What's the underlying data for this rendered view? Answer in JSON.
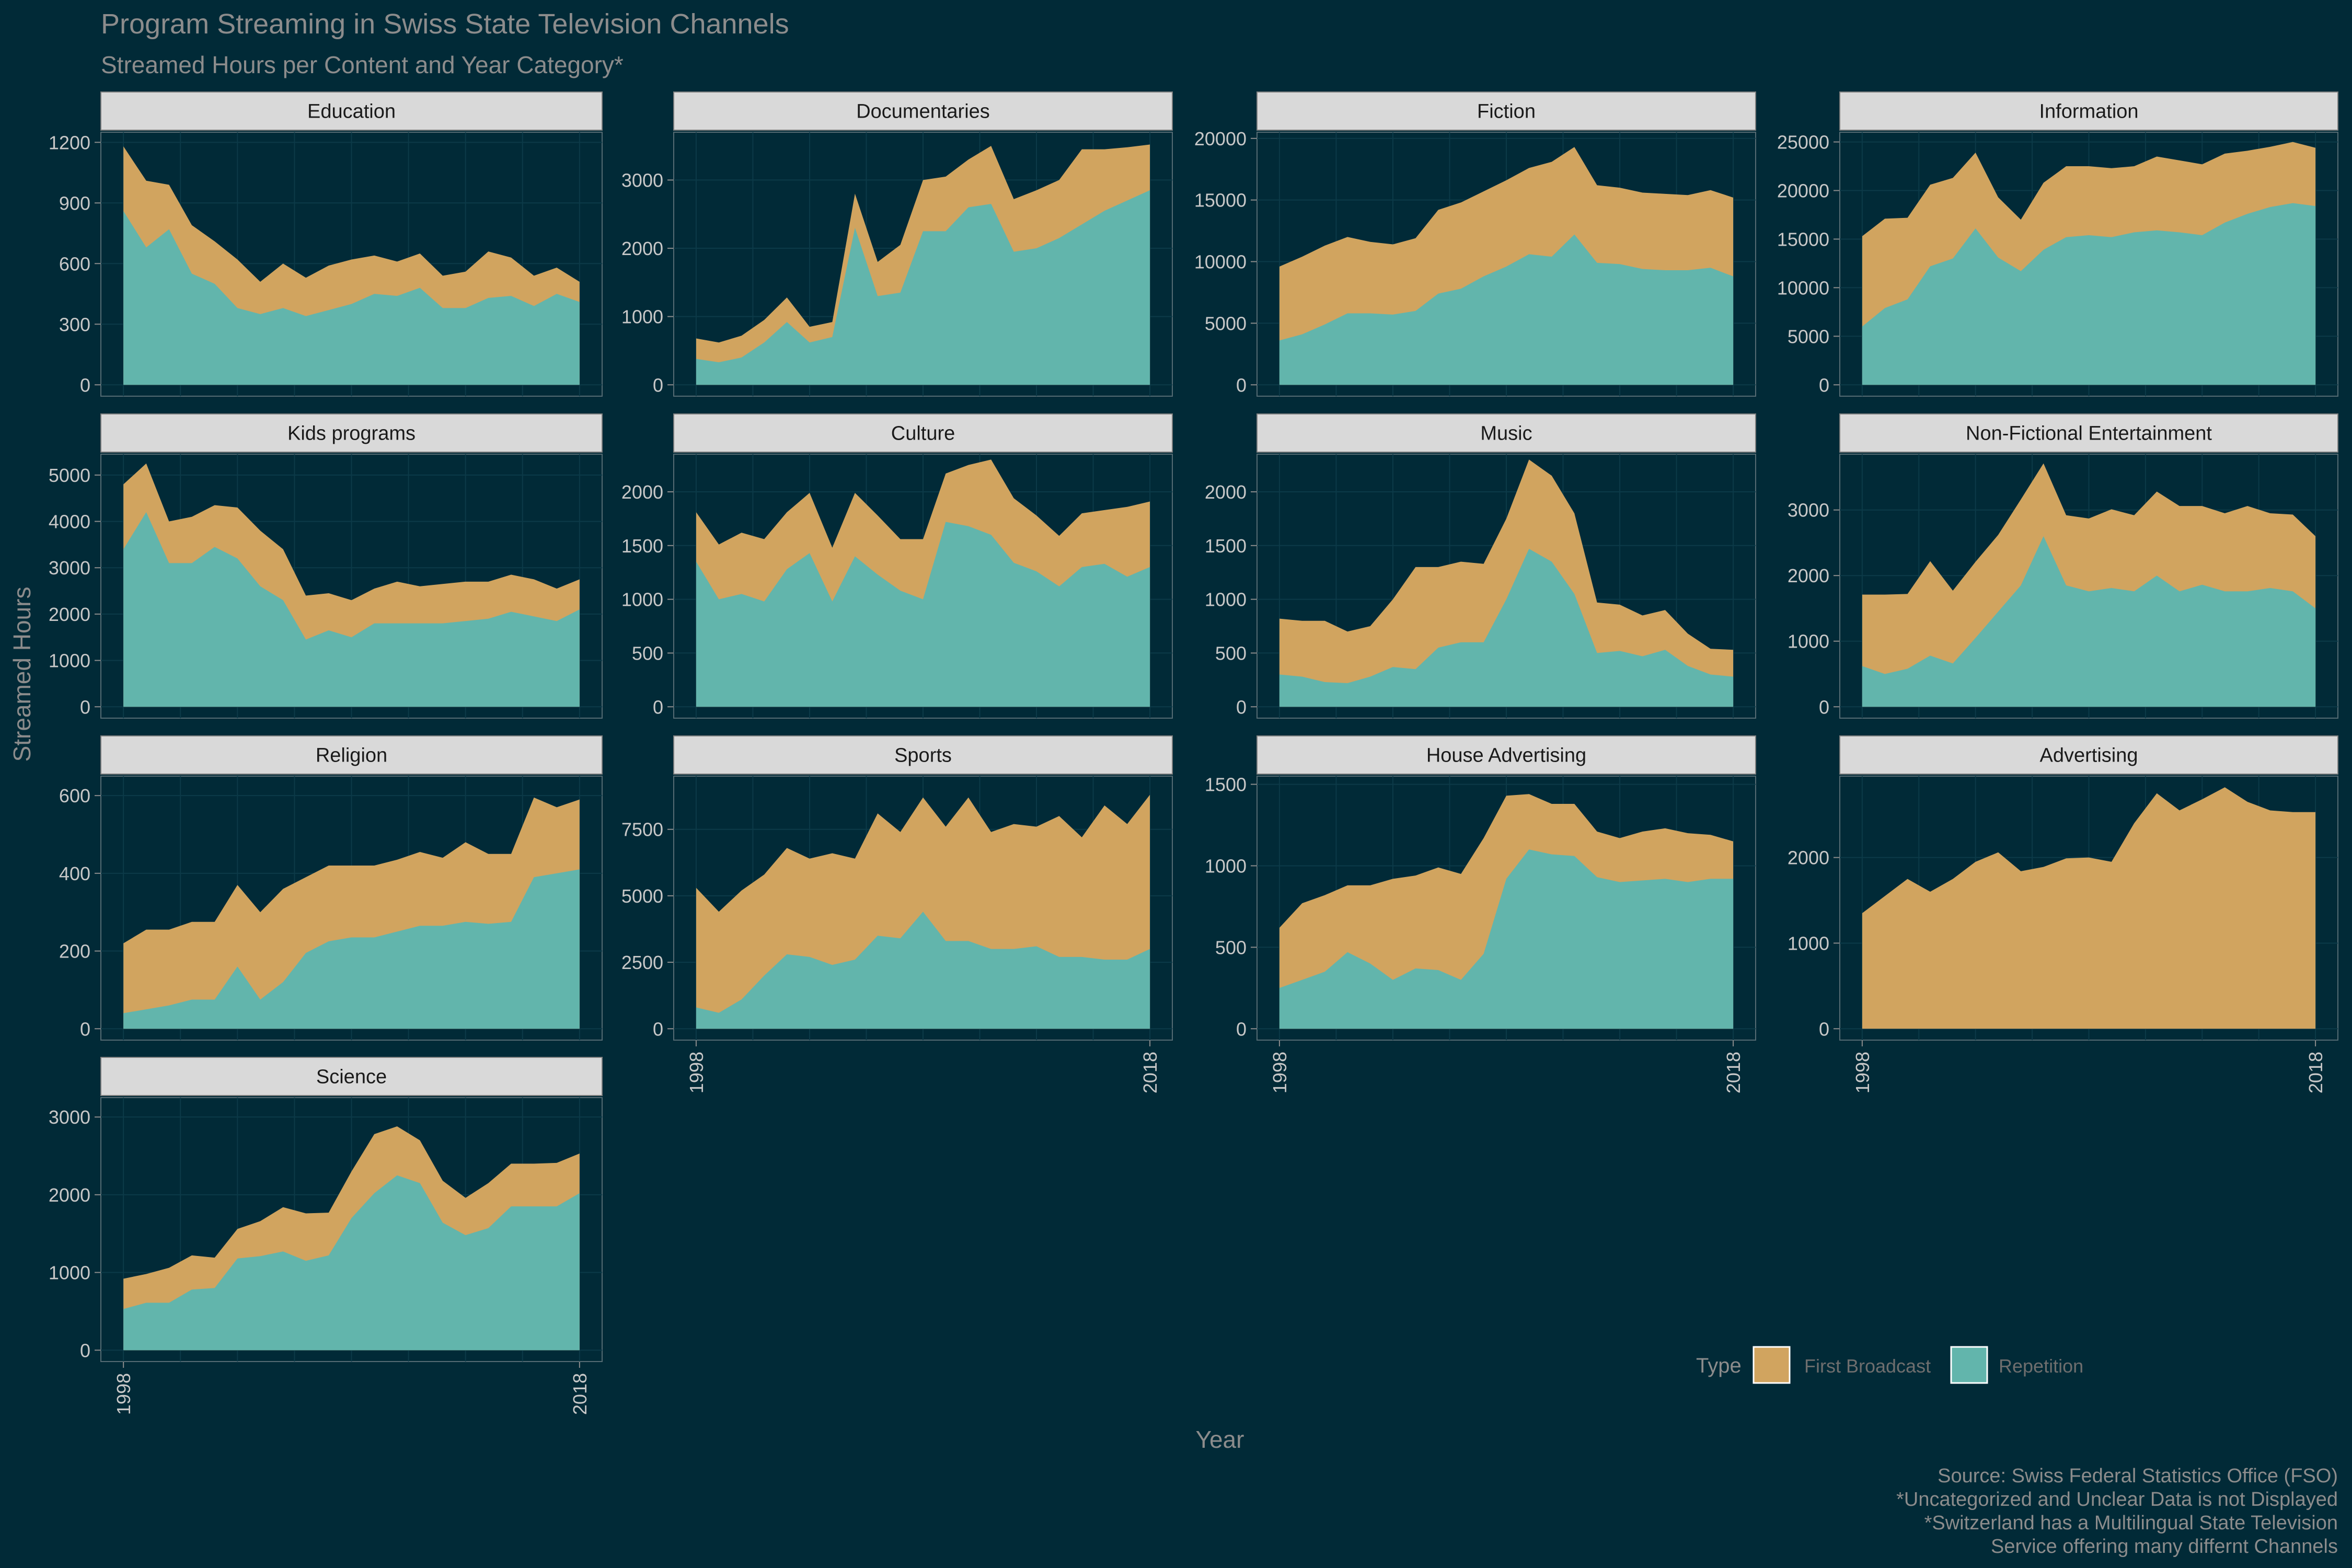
{
  "title": "Program Streaming in Swiss State Television Channels",
  "subtitle": "Streamed Hours per Content and Year Category*",
  "ylabel": "Streamed Hours",
  "xlabel": "Year",
  "legend": {
    "title": "Type",
    "items": [
      {
        "label": "First Broadcast",
        "color": "#d1a45f"
      },
      {
        "label": "Repetition",
        "color": "#62b5ac"
      }
    ]
  },
  "caption": [
    "Source: Swiss Federal Statistics Office (FSO)",
    "*Uncategorized and Unclear Data is not Displayed",
    "*Switzerland has a Multilingual State Television",
    "Service offering many differnt Channels"
  ],
  "colors": {
    "background": "#012a37",
    "first_broadcast": "#d1a45f",
    "repetition": "#62b5ac",
    "strip": "#d9d9d9",
    "text": "#8c8c8c"
  },
  "chart_data": {
    "type": "area",
    "stacked": true,
    "x": [
      1998,
      1999,
      2000,
      2001,
      2002,
      2003,
      2004,
      2005,
      2006,
      2007,
      2008,
      2009,
      2010,
      2011,
      2012,
      2013,
      2014,
      2015,
      2016,
      2017,
      2018
    ],
    "x_ticks": [
      "1998",
      "2018"
    ],
    "panels": [
      {
        "name": "Education",
        "yticks": [
          0,
          300,
          600,
          900,
          1200
        ],
        "ylim": [
          0,
          1250
        ],
        "repetition": [
          860,
          680,
          770,
          550,
          500,
          380,
          350,
          380,
          340,
          370,
          400,
          450,
          440,
          480,
          380,
          380,
          430,
          440,
          390,
          450,
          410
        ],
        "total": [
          1180,
          1010,
          990,
          790,
          710,
          620,
          510,
          600,
          530,
          590,
          620,
          640,
          610,
          650,
          540,
          560,
          660,
          630,
          540,
          580,
          510
        ]
      },
      {
        "name": "Documentaries",
        "yticks": [
          0,
          1000,
          2000,
          3000
        ],
        "ylim": [
          0,
          3700
        ],
        "repetition": [
          380,
          330,
          400,
          620,
          920,
          620,
          700,
          2300,
          1300,
          1350,
          2250,
          2250,
          2600,
          2650,
          1950,
          2000,
          2150,
          2350,
          2550,
          2700,
          2850
        ],
        "total": [
          680,
          620,
          720,
          950,
          1280,
          850,
          920,
          2800,
          1800,
          2050,
          3000,
          3050,
          3300,
          3500,
          2720,
          2850,
          3000,
          3450,
          3450,
          3480,
          3520
        ]
      },
      {
        "name": "Fiction",
        "yticks": [
          0,
          5000,
          10000,
          15000,
          20000
        ],
        "ylim": [
          0,
          20500
        ],
        "repetition": [
          3600,
          4100,
          4900,
          5800,
          5800,
          5700,
          6000,
          7400,
          7800,
          8800,
          9600,
          10600,
          10400,
          12200,
          9900,
          9800,
          9400,
          9300,
          9300,
          9500,
          8800
        ],
        "total": [
          9600,
          10400,
          11300,
          12000,
          11600,
          11400,
          11900,
          14200,
          14800,
          15700,
          16600,
          17600,
          18100,
          19300,
          16200,
          16000,
          15600,
          15500,
          15400,
          15800,
          15200
        ]
      },
      {
        "name": "Information",
        "yticks": [
          0,
          5000,
          10000,
          15000,
          20000,
          25000
        ],
        "ylim": [
          0,
          26000
        ],
        "repetition": [
          6000,
          7900,
          8800,
          12200,
          13000,
          16100,
          13100,
          11700,
          13900,
          15200,
          15400,
          15200,
          15700,
          15900,
          15700,
          15400,
          16700,
          17600,
          18300,
          18700,
          18400
        ],
        "total": [
          15300,
          17100,
          17200,
          20600,
          21300,
          23900,
          19300,
          17000,
          20800,
          22500,
          22500,
          22300,
          22500,
          23500,
          23100,
          22700,
          23800,
          24100,
          24500,
          25000,
          24400
        ]
      },
      {
        "name": "Kids programs",
        "yticks": [
          0,
          1000,
          2000,
          3000,
          4000,
          5000
        ],
        "ylim": [
          0,
          5450
        ],
        "repetition": [
          3400,
          4200,
          3100,
          3100,
          3450,
          3200,
          2600,
          2300,
          1450,
          1650,
          1500,
          1800,
          1800,
          1800,
          1800,
          1850,
          1900,
          2050,
          1950,
          1850,
          2100
        ],
        "total": [
          4800,
          5250,
          4000,
          4100,
          4350,
          4300,
          3800,
          3400,
          2400,
          2450,
          2300,
          2550,
          2700,
          2600,
          2650,
          2700,
          2700,
          2850,
          2750,
          2550,
          2750
        ]
      },
      {
        "name": "Culture",
        "yticks": [
          0,
          500,
          1000,
          1500,
          2000
        ],
        "ylim": [
          0,
          2350
        ],
        "repetition": [
          1350,
          1000,
          1050,
          980,
          1280,
          1430,
          980,
          1400,
          1230,
          1080,
          1000,
          1720,
          1680,
          1600,
          1340,
          1260,
          1120,
          1300,
          1330,
          1210,
          1300
        ],
        "total": [
          1810,
          1510,
          1620,
          1560,
          1810,
          1990,
          1480,
          1990,
          1780,
          1560,
          1560,
          2170,
          2250,
          2300,
          1940,
          1780,
          1590,
          1800,
          1830,
          1860,
          1910
        ]
      },
      {
        "name": "Music",
        "yticks": [
          0,
          500,
          1000,
          1500,
          2000
        ],
        "ylim": [
          0,
          2350
        ],
        "repetition": [
          300,
          280,
          230,
          220,
          280,
          370,
          350,
          550,
          600,
          600,
          1000,
          1470,
          1350,
          1050,
          500,
          520,
          470,
          530,
          380,
          300,
          280
        ],
        "total": [
          820,
          800,
          800,
          700,
          750,
          1000,
          1300,
          1300,
          1350,
          1330,
          1750,
          2300,
          2150,
          1800,
          970,
          950,
          850,
          900,
          680,
          540,
          530
        ]
      },
      {
        "name": "Non-Fictional Entertainment",
        "yticks": [
          0,
          1000,
          2000,
          3000
        ],
        "ylim": [
          0,
          3850
        ],
        "repetition": [
          620,
          500,
          580,
          780,
          660,
          1050,
          1450,
          1850,
          2600,
          1850,
          1760,
          1810,
          1760,
          2000,
          1760,
          1860,
          1760,
          1760,
          1810,
          1760,
          1500
        ],
        "total": [
          1710,
          1710,
          1720,
          2220,
          1770,
          2210,
          2620,
          3160,
          3710,
          2920,
          2870,
          3010,
          2920,
          3280,
          3060,
          3060,
          2950,
          3060,
          2950,
          2930,
          2600
        ]
      },
      {
        "name": "Religion",
        "yticks": [
          0,
          200,
          400,
          600
        ],
        "ylim": [
          0,
          650
        ],
        "repetition": [
          40,
          50,
          60,
          75,
          75,
          160,
          75,
          120,
          195,
          225,
          235,
          235,
          250,
          265,
          265,
          275,
          270,
          275,
          390,
          400,
          410
        ],
        "total": [
          220,
          255,
          255,
          275,
          275,
          370,
          300,
          360,
          390,
          420,
          420,
          420,
          435,
          455,
          440,
          480,
          450,
          450,
          595,
          570,
          590
        ]
      },
      {
        "name": "Sports",
        "yticks": [
          0,
          2500,
          5000,
          7500
        ],
        "ylim": [
          0,
          9500
        ],
        "repetition": [
          800,
          600,
          1100,
          2000,
          2800,
          2700,
          2400,
          2600,
          3500,
          3400,
          4400,
          3300,
          3300,
          3000,
          3000,
          3100,
          2700,
          2700,
          2600,
          2600,
          3000
        ],
        "total": [
          5300,
          4400,
          5200,
          5800,
          6800,
          6400,
          6600,
          6400,
          8100,
          7400,
          8700,
          7600,
          8700,
          7400,
          7700,
          7600,
          8000,
          7200,
          8400,
          7700,
          8800
        ]
      },
      {
        "name": "House Advertising",
        "yticks": [
          0,
          500,
          1000,
          1500
        ],
        "ylim": [
          0,
          1550
        ],
        "repetition": [
          250,
          300,
          350,
          470,
          400,
          300,
          370,
          360,
          300,
          460,
          920,
          1100,
          1070,
          1060,
          930,
          900,
          910,
          920,
          900,
          920,
          920
        ],
        "total": [
          620,
          770,
          820,
          880,
          880,
          920,
          940,
          990,
          950,
          1170,
          1430,
          1440,
          1380,
          1380,
          1210,
          1170,
          1210,
          1230,
          1200,
          1190,
          1150
        ]
      },
      {
        "name": "Advertising",
        "yticks": [
          0,
          1000,
          2000
        ],
        "ylim": [
          0,
          2950
        ],
        "repetition": [
          0,
          0,
          0,
          0,
          0,
          0,
          0,
          0,
          0,
          0,
          0,
          0,
          0,
          0,
          0,
          0,
          0,
          0,
          0,
          0,
          0
        ],
        "total": [
          1350,
          1550,
          1750,
          1600,
          1750,
          1950,
          2060,
          1840,
          1890,
          1990,
          2000,
          1950,
          2400,
          2750,
          2550,
          2680,
          2820,
          2650,
          2550,
          2530,
          2530
        ]
      },
      {
        "name": "Science",
        "yticks": [
          0,
          1000,
          2000,
          3000
        ],
        "ylim": [
          0,
          3250
        ],
        "repetition": [
          530,
          610,
          610,
          780,
          800,
          1180,
          1210,
          1270,
          1150,
          1220,
          1700,
          2020,
          2250,
          2150,
          1640,
          1480,
          1570,
          1850,
          1850,
          1850,
          2020
        ],
        "total": [
          920,
          980,
          1060,
          1220,
          1190,
          1560,
          1660,
          1840,
          1760,
          1770,
          2300,
          2780,
          2880,
          2700,
          2180,
          1960,
          2150,
          2400,
          2400,
          2410,
          2530
        ]
      }
    ]
  }
}
